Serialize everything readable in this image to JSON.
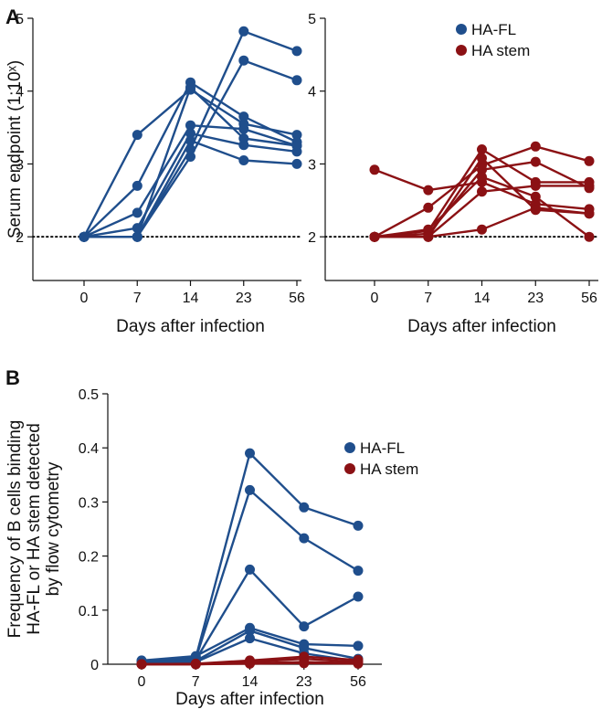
{
  "panel_labels": [
    "A",
    "B"
  ],
  "colors": {
    "ha_fl": "#1f4e8c",
    "ha_stem": "#8b1114"
  },
  "chart_data": [
    {
      "type": "line",
      "panel": "A",
      "subplot": "left",
      "x": [
        0,
        7,
        14,
        23,
        56
      ],
      "xticklabels": [
        "0",
        "7",
        "14",
        "23",
        "56"
      ],
      "xlabel": "Days after infection",
      "ylabel": "Serum endpoint (1:10ˣ)",
      "ylim": [
        1.4,
        5
      ],
      "yticks": [
        2,
        3,
        4,
        5
      ],
      "reference_line": {
        "y": 2,
        "style": "dotted"
      },
      "legend": [],
      "series": [
        {
          "group": "HA-FL",
          "values": [
            2,
            3.4,
            4.02,
            3.55,
            3.4
          ]
        },
        {
          "group": "HA-FL",
          "values": [
            2,
            2.7,
            4.12,
            3.65,
            3.3
          ]
        },
        {
          "group": "HA-FL",
          "values": [
            2,
            2.33,
            3.53,
            3.48,
            3.25
          ]
        },
        {
          "group": "HA-FL",
          "values": [
            2,
            2.12,
            3.42,
            3.26,
            3.17
          ]
        },
        {
          "group": "HA-FL",
          "values": [
            2,
            2,
            3.32,
            3.05,
            3
          ]
        },
        {
          "group": "HA-FL",
          "values": [
            2,
            2,
            3.1,
            4.42,
            4.15
          ]
        },
        {
          "group": "HA-FL",
          "values": [
            2,
            2,
            3.2,
            4.82,
            4.55
          ]
        },
        {
          "group": "HA-FL",
          "values": [
            2,
            2,
            4.05,
            3.35,
            3.25
          ]
        }
      ]
    },
    {
      "type": "line",
      "panel": "A",
      "subplot": "right",
      "x": [
        0,
        7,
        14,
        23,
        56
      ],
      "xticklabels": [
        "0",
        "7",
        "14",
        "23",
        "56"
      ],
      "xlabel": "Days after infection",
      "ylabel": "",
      "ylim": [
        1.4,
        5
      ],
      "yticks": [
        2,
        3,
        4,
        5
      ],
      "reference_line": {
        "y": 2,
        "style": "dotted"
      },
      "legend": [
        "HA-FL",
        "HA stem"
      ],
      "series": [
        {
          "group": "HA stem",
          "values": [
            2.92,
            2.64,
            2.75,
            2.45,
            2.38
          ]
        },
        {
          "group": "HA stem",
          "values": [
            2,
            2.4,
            2.98,
            3.24,
            3.04
          ]
        },
        {
          "group": "HA stem",
          "values": [
            2,
            2.08,
            3.2,
            2.75,
            2.75
          ]
        },
        {
          "group": "HA stem",
          "values": [
            2,
            2.04,
            2.92,
            3.03,
            2.67
          ]
        },
        {
          "group": "HA stem",
          "values": [
            2,
            2.1,
            2.82,
            2.55,
            2
          ]
        },
        {
          "group": "HA stem",
          "values": [
            2,
            2,
            2.62,
            2.7,
            2.7
          ]
        },
        {
          "group": "HA stem",
          "values": [
            2,
            2,
            2.1,
            2.4,
            2.32
          ]
        },
        {
          "group": "HA stem",
          "values": [
            2,
            2,
            3.08,
            2.37,
            2.32
          ]
        }
      ]
    },
    {
      "type": "line",
      "panel": "B",
      "x": [
        0,
        7,
        14,
        23,
        56
      ],
      "xticklabels": [
        "0",
        "7",
        "14",
        "23",
        "56"
      ],
      "xlabel": "Days after infection",
      "ylabel": "Frequency of B cells binding HA-FL or HA stem detected by flow cytometry",
      "ylabel_lines": [
        "Frequency of B cells binding",
        "HA-FL or HA stem detected",
        "by flow cytometry"
      ],
      "ylim": [
        0,
        0.5
      ],
      "yticks": [
        0,
        0.1,
        0.2,
        0.3,
        0.4,
        0.5
      ],
      "yticklabels": [
        "0",
        "0.1",
        "0.2",
        "0.3",
        "0.4",
        "0.5"
      ],
      "legend": [
        "HA-FL",
        "HA stem"
      ],
      "series": [
        {
          "group": "HA-FL",
          "values": [
            0.005,
            0.012,
            0.39,
            0.29,
            0.256
          ]
        },
        {
          "group": "HA-FL",
          "values": [
            0.003,
            0.01,
            0.322,
            0.233,
            0.173
          ]
        },
        {
          "group": "HA-FL",
          "values": [
            0.002,
            0.008,
            0.175,
            0.07,
            0.125
          ]
        },
        {
          "group": "HA-FL",
          "values": [
            0.007,
            0.015,
            0.067,
            0.037,
            0.034
          ]
        },
        {
          "group": "HA-FL",
          "values": [
            0.002,
            0.006,
            0.062,
            0.03,
            0.01
          ]
        },
        {
          "group": "HA-FL",
          "values": [
            0.001,
            0.004,
            0.048,
            0.02,
            0.005
          ]
        },
        {
          "group": "HA stem",
          "values": [
            0,
            0.001,
            0.007,
            0.014,
            0.008
          ]
        },
        {
          "group": "HA stem",
          "values": [
            0,
            0,
            0.004,
            0.01,
            0.004
          ]
        },
        {
          "group": "HA stem",
          "values": [
            0,
            0,
            0.002,
            0.004,
            0.002
          ]
        },
        {
          "group": "HA stem",
          "values": [
            0,
            0,
            0.001,
            0.002,
            0.001
          ]
        }
      ]
    }
  ]
}
